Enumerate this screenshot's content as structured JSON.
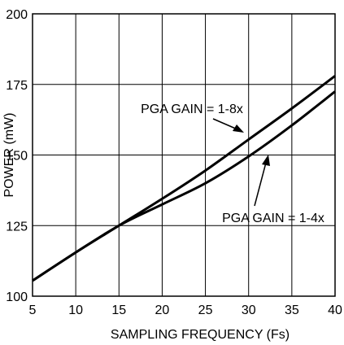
{
  "chart_data": {
    "type": "line",
    "xlabel": "SAMPLING FREQUENCY (Fs)",
    "ylabel": "POWER (mW)",
    "xlim": [
      5,
      40
    ],
    "ylim": [
      100,
      200
    ],
    "xticks": [
      5,
      10,
      15,
      20,
      25,
      30,
      35,
      40
    ],
    "yticks": [
      100,
      125,
      150,
      175,
      200
    ],
    "grid": true,
    "series": [
      {
        "name": "PGA GAIN = 1-8x",
        "x": [
          5,
          10,
          15,
          20,
          25,
          30,
          35,
          40
        ],
        "y": [
          105.5,
          115.5,
          125,
          134.5,
          144.5,
          155.5,
          166.5,
          178
        ]
      },
      {
        "name": "PGA GAIN = 1-4x",
        "x": [
          5,
          10,
          15,
          20,
          25,
          30,
          35,
          40
        ],
        "y": [
          105.5,
          115.5,
          125,
          132.5,
          140,
          149.5,
          160.5,
          172.5
        ]
      }
    ],
    "annotations": [
      {
        "text": "PGA GAIN = 1-8x",
        "target_series": 0,
        "point": [
          27.5,
          150
        ]
      },
      {
        "text": "PGA GAIN = 1-4x",
        "target_series": 1,
        "point": [
          31.5,
          155
        ]
      }
    ]
  }
}
